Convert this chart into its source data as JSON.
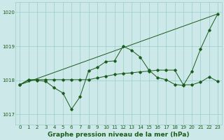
{
  "xlabel": "Graphe pression niveau de la mer (hPa)",
  "ylim": [
    1016.7,
    1020.3
  ],
  "xlim": [
    -0.5,
    23.5
  ],
  "yticks": [
    1017,
    1018,
    1019,
    1020
  ],
  "xticks": [
    0,
    1,
    2,
    3,
    4,
    5,
    6,
    7,
    8,
    9,
    10,
    11,
    12,
    13,
    14,
    15,
    16,
    17,
    18,
    19,
    20,
    21,
    22,
    23
  ],
  "bg_color": "#cce8e8",
  "grid_color": "#99cccc",
  "line_color": "#1a5c1a",
  "line1_x": [
    0,
    1,
    2,
    3,
    4,
    5,
    6,
    7,
    8,
    9,
    10,
    11,
    12,
    13,
    14,
    15,
    16,
    17,
    18,
    19,
    20,
    21,
    22,
    23
  ],
  "line1_y": [
    1017.87,
    1018.0,
    1018.0,
    1017.97,
    1017.78,
    1017.63,
    1017.15,
    1017.52,
    1018.28,
    1018.38,
    1018.55,
    1018.57,
    1019.0,
    1018.88,
    1018.68,
    1018.3,
    1018.08,
    1018.02,
    1017.88,
    1017.85,
    1018.27,
    1018.92,
    1019.47,
    1019.95
  ],
  "line2_x": [
    0,
    1,
    2,
    3,
    4,
    5,
    6,
    7,
    8,
    9,
    10,
    11,
    12,
    13,
    14,
    15,
    16,
    17,
    18,
    19,
    20,
    21,
    22,
    23
  ],
  "line2_y": [
    1017.87,
    1018.02,
    1018.02,
    1018.02,
    1018.02,
    1018.02,
    1018.02,
    1018.02,
    1018.02,
    1018.07,
    1018.12,
    1018.17,
    1018.2,
    1018.22,
    1018.25,
    1018.27,
    1018.3,
    1018.3,
    1018.3,
    1017.87,
    1017.87,
    1017.95,
    1018.1,
    1017.97
  ],
  "line3_x": [
    0,
    23
  ],
  "line3_y": [
    1017.87,
    1019.95
  ],
  "marker": "D",
  "marker_size": 1.8,
  "font_color": "#1a5c1a",
  "tick_fontsize": 5.0,
  "xlabel_fontsize": 6.5
}
